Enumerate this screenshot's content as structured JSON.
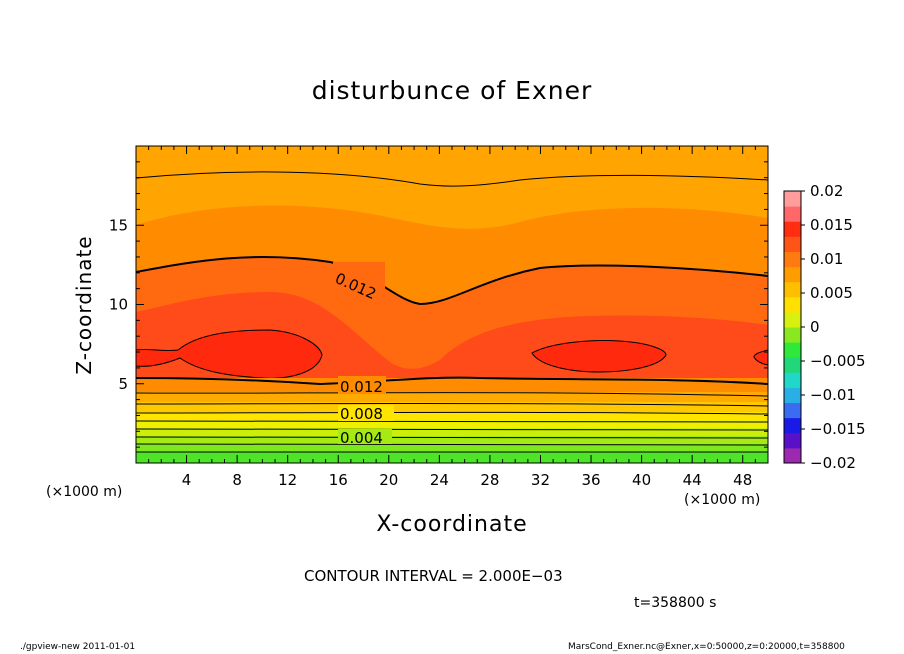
{
  "header": {
    "title": "disturbunce of Exner"
  },
  "chart_data": {
    "type": "contour",
    "title": "disturbunce of Exner",
    "xlabel": "X-coordinate",
    "ylabel": "Z-coordinate",
    "x_unit_left": "(×1000 m)",
    "x_unit_right": "(×1000 m)",
    "xlim": [
      0,
      50
    ],
    "ylim": [
      0,
      20
    ],
    "x_ticks": [
      "4",
      "8",
      "12",
      "16",
      "20",
      "24",
      "28",
      "32",
      "36",
      "40",
      "44",
      "48"
    ],
    "y_ticks": [
      "5",
      "10",
      "15"
    ],
    "colorbar": {
      "range": [
        -0.02,
        0.02
      ],
      "labels": [
        "0.02",
        "0.015",
        "0.01",
        "0.005",
        "0",
        "−0.005",
        "−0.01",
        "−0.015",
        "−0.02"
      ],
      "colors": [
        "#9c29b0",
        "#5a10c8",
        "#1a1ae6",
        "#3a6cf2",
        "#2aaee6",
        "#20d8c8",
        "#22d67a",
        "#2ee83a",
        "#8ae820",
        "#d8f010",
        "#ffe000",
        "#ffbe00",
        "#ff9c00",
        "#ff7a10",
        "#ff5418",
        "#ff2e10",
        "#ff6868",
        "#ff9c9c"
      ]
    },
    "contour_labels": [
      "0.012",
      "0.012",
      "0.008",
      "0.004"
    ],
    "contour_interval": "CONTOUR INTERVAL = 2.000E−03"
  },
  "annotations": {
    "contour_interval": "CONTOUR INTERVAL = 2.000E−03",
    "time": "t=358800 s"
  },
  "footer": {
    "left": "./gpview-new   2011-01-01",
    "right": "MarsCond_Exner.nc@Exner,x=0:50000,z=0:20000,t=358800"
  }
}
